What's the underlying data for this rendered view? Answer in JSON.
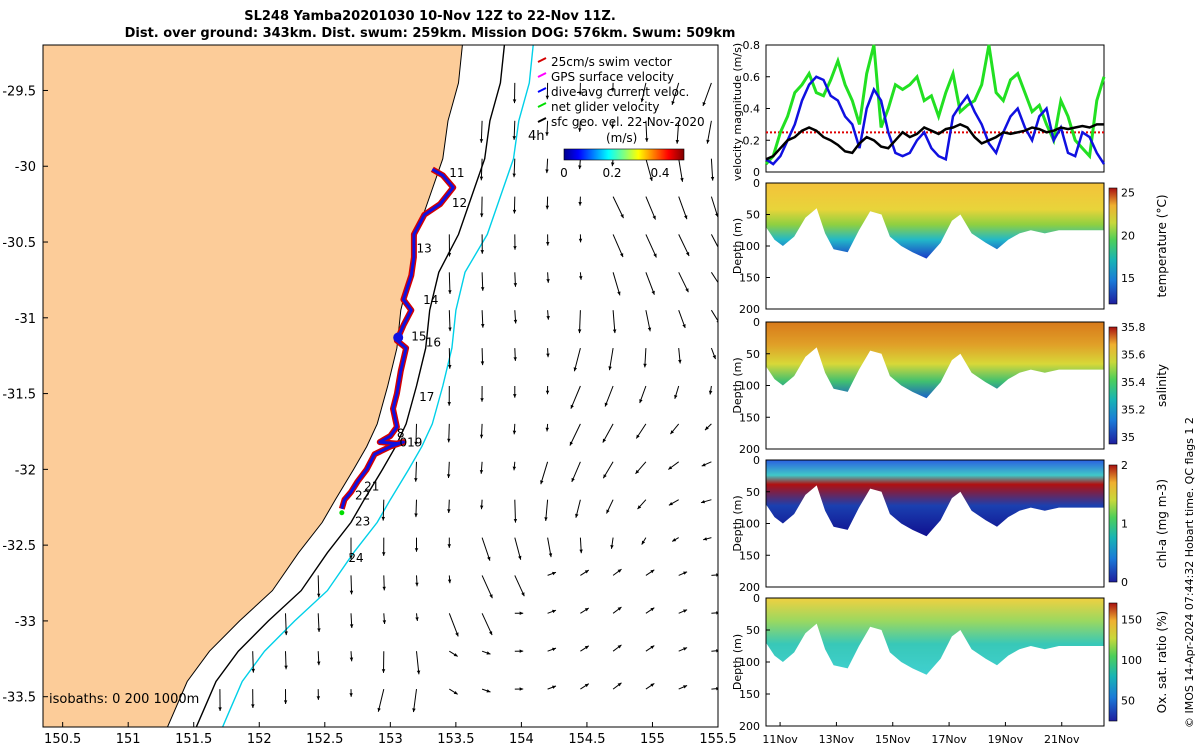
{
  "header": {
    "title_line1": "SL248 Yamba20201030 10-Nov 12Z to 22-Nov 11Z.",
    "title_line2": "Dist. over ground: 343km. Dist. swum: 259km. Mission DOG: 576km. Swum: 509km"
  },
  "map": {
    "xticks": [
      "150.5",
      "151",
      "151.5",
      "152",
      "152.5",
      "153",
      "153.5",
      "154",
      "154.5",
      "155",
      "155.5"
    ],
    "yticks": [
      "-29.5",
      "-30",
      "-30.5",
      "-31",
      "-31.5",
      "-32",
      "-32.5",
      "-33",
      "-33.5"
    ],
    "xlim": [
      150.35,
      155.5
    ],
    "ylim": [
      -33.7,
      -29.2
    ],
    "isobath_label": "isobaths: 0   200  1000m",
    "vector_scale_label": "4h",
    "legend": [
      {
        "label": "25cm/s swim vector",
        "color": "#d40000"
      },
      {
        "label": "GPS surface velocity",
        "color": "#ff00ff"
      },
      {
        "label": "dive-avg current veloc.",
        "color": "#0000ff"
      },
      {
        "label": "net glider velocity",
        "color": "#00dd00"
      },
      {
        "label": "sfc geo. vel. 22-Nov-2020",
        "color": "#000000"
      }
    ],
    "colorbar": {
      "label": "(m/s)",
      "ticks": [
        "0",
        "0.2",
        "0.4"
      ],
      "range": [
        0,
        0.5
      ]
    },
    "day_labels": [
      {
        "text": "11",
        "lon": 153.45,
        "lat": -30.07
      },
      {
        "text": "12",
        "lon": 153.47,
        "lat": -30.27
      },
      {
        "text": "13",
        "lon": 153.2,
        "lat": -30.57
      },
      {
        "text": "14",
        "lon": 153.25,
        "lat": -30.91
      },
      {
        "text": "15",
        "lon": 153.16,
        "lat": -31.15
      },
      {
        "text": "16",
        "lon": 153.27,
        "lat": -31.19
      },
      {
        "text": "17",
        "lon": 153.22,
        "lat": -31.55
      },
      {
        "text": "8",
        "lon": 153.05,
        "lat": -31.79
      },
      {
        "text": "019",
        "lon": 153.07,
        "lat": -31.85
      },
      {
        "text": "21",
        "lon": 152.8,
        "lat": -32.14
      },
      {
        "text": "22",
        "lon": 152.73,
        "lat": -32.2
      },
      {
        "text": "23",
        "lon": 152.73,
        "lat": -32.37
      },
      {
        "text": "24",
        "lon": 152.68,
        "lat": -32.61
      }
    ],
    "track": [
      [
        153.32,
        -30.02
      ],
      [
        153.4,
        -30.06
      ],
      [
        153.48,
        -30.14
      ],
      [
        153.38,
        -30.25
      ],
      [
        153.26,
        -30.32
      ],
      [
        153.18,
        -30.45
      ],
      [
        153.18,
        -30.6
      ],
      [
        153.16,
        -30.72
      ],
      [
        153.1,
        -30.88
      ],
      [
        153.16,
        -30.95
      ],
      [
        153.1,
        -31.05
      ],
      [
        153.05,
        -31.15
      ],
      [
        153.12,
        -31.2
      ],
      [
        153.08,
        -31.35
      ],
      [
        153.05,
        -31.5
      ],
      [
        153.02,
        -31.6
      ],
      [
        153.05,
        -31.72
      ],
      [
        153.0,
        -31.78
      ],
      [
        152.92,
        -31.82
      ],
      [
        153.05,
        -31.83
      ],
      [
        153.1,
        -31.82
      ],
      [
        153.0,
        -31.85
      ],
      [
        152.88,
        -31.9
      ],
      [
        152.82,
        -32.0
      ],
      [
        152.75,
        -32.08
      ],
      [
        152.7,
        -32.15
      ],
      [
        152.65,
        -32.2
      ],
      [
        152.63,
        -32.26
      ]
    ]
  },
  "velocity": {
    "ylabel": "velocity magnitude (m/s)",
    "ylim": [
      0,
      0.8
    ],
    "yticks": [
      "0",
      "0.2",
      "0.4",
      "0.6",
      "0.8"
    ],
    "time_range": [
      0,
      12
    ],
    "green": [
      0.05,
      0.1,
      0.25,
      0.35,
      0.5,
      0.55,
      0.62,
      0.5,
      0.48,
      0.58,
      0.7,
      0.55,
      0.45,
      0.3,
      0.62,
      0.8,
      0.28,
      0.4,
      0.55,
      0.52,
      0.55,
      0.6,
      0.45,
      0.48,
      0.35,
      0.5,
      0.62,
      0.38,
      0.42,
      0.45,
      0.55,
      0.8,
      0.5,
      0.45,
      0.58,
      0.62,
      0.5,
      0.38,
      0.42,
      0.3,
      0.2,
      0.45,
      0.35,
      0.2,
      0.15,
      0.1,
      0.45,
      0.6
    ],
    "blue": [
      0.08,
      0.05,
      0.1,
      0.2,
      0.3,
      0.45,
      0.55,
      0.6,
      0.58,
      0.48,
      0.45,
      0.35,
      0.3,
      0.15,
      0.4,
      0.52,
      0.45,
      0.25,
      0.12,
      0.1,
      0.12,
      0.2,
      0.25,
      0.15,
      0.1,
      0.08,
      0.35,
      0.42,
      0.48,
      0.38,
      0.3,
      0.18,
      0.12,
      0.25,
      0.35,
      0.4,
      0.28,
      0.2,
      0.35,
      0.4,
      0.2,
      0.28,
      0.12,
      0.1,
      0.25,
      0.22,
      0.12,
      0.05
    ],
    "black": [
      0.08,
      0.1,
      0.15,
      0.2,
      0.22,
      0.26,
      0.28,
      0.26,
      0.22,
      0.2,
      0.17,
      0.13,
      0.12,
      0.18,
      0.22,
      0.2,
      0.16,
      0.15,
      0.2,
      0.25,
      0.22,
      0.24,
      0.28,
      0.26,
      0.24,
      0.27,
      0.28,
      0.3,
      0.28,
      0.22,
      0.18,
      0.2,
      0.22,
      0.25,
      0.24,
      0.25,
      0.26,
      0.28,
      0.27,
      0.25,
      0.26,
      0.28,
      0.27,
      0.28,
      0.29,
      0.28,
      0.3,
      0.3
    ],
    "red_level": 0.25
  },
  "sections": [
    {
      "label": "temperature (°C)",
      "ticks": [
        "15",
        "20",
        "25"
      ],
      "range": [
        12,
        25.5
      ],
      "ylabel": "Depth (m)"
    },
    {
      "label": "salinity",
      "ticks": [
        "35",
        "35.2",
        "35.4",
        "35.6",
        "35.8"
      ],
      "range": [
        34.95,
        35.8
      ],
      "ylabel": "Depth (m)"
    },
    {
      "label": "chl-a (mg m-3)",
      "ticks": [
        "0",
        "1",
        "2"
      ],
      "range": [
        0,
        2
      ],
      "ylabel": "Depth (m)"
    },
    {
      "label": "Ox. sat. ratio (%)",
      "ticks": [
        "50",
        "100",
        "150"
      ],
      "range": [
        25,
        170
      ],
      "ylabel": "Depth (m)"
    }
  ],
  "section_yticks": [
    "0",
    "50",
    "100",
    "150",
    "200"
  ],
  "dive_profile_days": [
    0,
    0.3,
    0.6,
    1.0,
    1.4,
    1.8,
    2.1,
    2.4,
    2.9,
    3.3,
    3.7,
    4.1,
    4.4,
    4.8,
    5.2,
    5.7,
    6.2,
    6.6,
    6.9,
    7.3,
    7.8,
    8.2,
    8.6,
    9.0,
    9.4,
    9.9,
    10.4,
    10.9,
    11.4,
    11.9,
    12.0
  ],
  "dive_profile_depth_m": [
    70,
    90,
    100,
    85,
    55,
    40,
    80,
    105,
    110,
    75,
    45,
    50,
    85,
    100,
    110,
    120,
    95,
    60,
    50,
    80,
    95,
    105,
    90,
    80,
    75,
    80,
    75,
    75,
    75,
    75,
    75
  ],
  "time_axis": {
    "ticks": [
      "11Nov",
      "13Nov",
      "15Nov",
      "17Nov",
      "19Nov",
      "21Nov"
    ],
    "tick_days": [
      0.5,
      2.5,
      4.5,
      6.5,
      8.5,
      10.5
    ]
  },
  "copyright": "© IMOS 14-Apr-2024 07:44:32 Hobart time. QC flags 1  2"
}
